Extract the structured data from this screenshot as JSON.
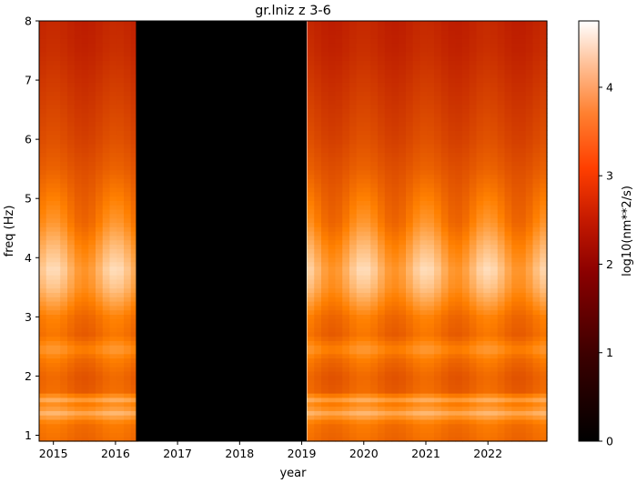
{
  "chart_data": {
    "type": "heatmap",
    "title": "gr.lniz z 3-6",
    "xlabel": "year",
    "ylabel": "freq (Hz)",
    "colorbar_label": "log10(nm**2/s)",
    "colormap": "gist_heat",
    "xlim": [
      2014.77,
      2022.95
    ],
    "ylim": [
      0.9,
      8.0
    ],
    "x_ticks": [
      "2015",
      "2016",
      "2017",
      "2018",
      "2019",
      "2020",
      "2021",
      "2022"
    ],
    "x_tick_values": [
      2015,
      2016,
      2017,
      2018,
      2019,
      2020,
      2021,
      2022
    ],
    "y_ticks": [
      "1",
      "2",
      "3",
      "4",
      "5",
      "6",
      "7",
      "8"
    ],
    "y_tick_values": [
      1,
      2,
      3,
      4,
      5,
      6,
      7,
      8
    ],
    "colorbar_ticks": [
      "0",
      "1",
      "2",
      "3",
      "4"
    ],
    "colorbar_tick_values": [
      0,
      1,
      2,
      3,
      4
    ],
    "colorbar_range": [
      0,
      4.75
    ],
    "data_gap": {
      "start": 2016.33,
      "end": 2019.08,
      "value": 0
    },
    "annual_cycle_peak": 2016.0,
    "frequency_profile": [
      {
        "freq": 0.9,
        "value": 3.35
      },
      {
        "freq": 1.2,
        "value": 3.45
      },
      {
        "freq": 1.4,
        "value": 4.05
      },
      {
        "freq": 1.5,
        "value": 3.5
      },
      {
        "freq": 1.6,
        "value": 3.9
      },
      {
        "freq": 1.75,
        "value": 3.3
      },
      {
        "freq": 2.0,
        "value": 3.25
      },
      {
        "freq": 2.3,
        "value": 3.45
      },
      {
        "freq": 2.45,
        "value": 3.7
      },
      {
        "freq": 2.7,
        "value": 3.35
      },
      {
        "freq": 3.0,
        "value": 3.45
      },
      {
        "freq": 3.5,
        "value": 3.95
      },
      {
        "freq": 3.8,
        "value": 4.1
      },
      {
        "freq": 4.2,
        "value": 3.85
      },
      {
        "freq": 4.6,
        "value": 3.55
      },
      {
        "freq": 5.0,
        "value": 3.4
      },
      {
        "freq": 5.5,
        "value": 3.2
      },
      {
        "freq": 6.0,
        "value": 3.05
      },
      {
        "freq": 6.5,
        "value": 2.95
      },
      {
        "freq": 7.0,
        "value": 2.85
      },
      {
        "freq": 7.5,
        "value": 2.75
      },
      {
        "freq": 8.0,
        "value": 2.7
      }
    ],
    "seasonal_amplitude": [
      {
        "freq": 0.9,
        "value": 0.08
      },
      {
        "freq": 3.0,
        "value": 0.15
      },
      {
        "freq": 3.8,
        "value": 0.35
      },
      {
        "freq": 4.6,
        "value": 0.25
      },
      {
        "freq": 5.5,
        "value": 0.1
      },
      {
        "freq": 8.0,
        "value": 0.06
      }
    ]
  }
}
